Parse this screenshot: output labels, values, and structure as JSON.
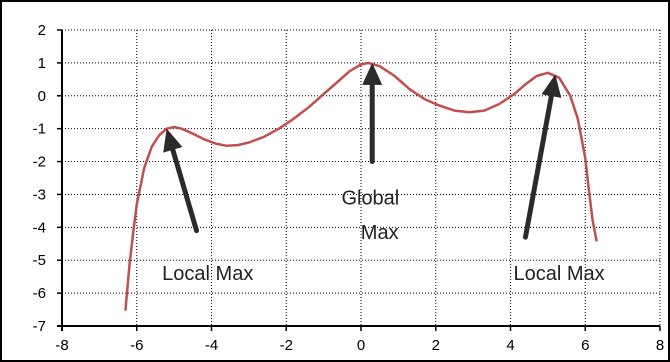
{
  "chart_data": {
    "type": "line",
    "title": "",
    "xlabel": "",
    "ylabel": "",
    "xlim": [
      -8,
      8
    ],
    "ylim": [
      -7,
      2
    ],
    "xticks": [
      -8,
      -6,
      -4,
      -2,
      0,
      2,
      4,
      6,
      8
    ],
    "yticks": [
      2,
      1,
      0,
      -1,
      -2,
      -3,
      -4,
      -5,
      -6,
      -7
    ],
    "grid": true,
    "legend": "none",
    "series": [
      {
        "color": "#c0504d",
        "points": [
          [
            -6.3,
            -6.5
          ],
          [
            -6.2,
            -5.2
          ],
          [
            -6.1,
            -4.2
          ],
          [
            -6.0,
            -3.3
          ],
          [
            -5.8,
            -2.2
          ],
          [
            -5.6,
            -1.55
          ],
          [
            -5.4,
            -1.2
          ],
          [
            -5.2,
            -1.0
          ],
          [
            -5.0,
            -0.95
          ],
          [
            -4.8,
            -1.0
          ],
          [
            -4.5,
            -1.15
          ],
          [
            -4.2,
            -1.32
          ],
          [
            -3.9,
            -1.45
          ],
          [
            -3.6,
            -1.52
          ],
          [
            -3.3,
            -1.5
          ],
          [
            -3.0,
            -1.42
          ],
          [
            -2.6,
            -1.25
          ],
          [
            -2.2,
            -1.0
          ],
          [
            -1.8,
            -0.7
          ],
          [
            -1.4,
            -0.35
          ],
          [
            -1.0,
            0.05
          ],
          [
            -0.6,
            0.45
          ],
          [
            -0.3,
            0.75
          ],
          [
            0.0,
            0.95
          ],
          [
            0.2,
            1.0
          ],
          [
            0.5,
            0.9
          ],
          [
            0.9,
            0.6
          ],
          [
            1.3,
            0.2
          ],
          [
            1.7,
            -0.1
          ],
          [
            2.1,
            -0.3
          ],
          [
            2.5,
            -0.45
          ],
          [
            2.9,
            -0.5
          ],
          [
            3.3,
            -0.45
          ],
          [
            3.7,
            -0.25
          ],
          [
            4.1,
            0.05
          ],
          [
            4.4,
            0.35
          ],
          [
            4.7,
            0.6
          ],
          [
            5.0,
            0.7
          ],
          [
            5.3,
            0.55
          ],
          [
            5.6,
            0.0
          ],
          [
            5.8,
            -0.7
          ],
          [
            6.0,
            -1.9
          ],
          [
            6.1,
            -2.9
          ],
          [
            6.2,
            -3.8
          ],
          [
            6.3,
            -4.4
          ]
        ]
      }
    ],
    "annotations": [
      {
        "text": "Local Max",
        "text_at": [
          -4.1,
          -5.6
        ],
        "arrow_from": [
          -4.4,
          -4.1
        ],
        "arrow_to": [
          -5.2,
          -1.0
        ]
      },
      {
        "text": "Global",
        "text_at": [
          0.25,
          -3.3
        ],
        "arrow_from": [
          0.3,
          -2.0
        ],
        "arrow_to": [
          0.3,
          1.0
        ]
      },
      {
        "text": "Max",
        "text_at": [
          0.5,
          -4.35
        ],
        "arrow_from": null,
        "arrow_to": null
      },
      {
        "text": "Local Max",
        "text_at": [
          5.3,
          -5.6
        ],
        "arrow_from": [
          4.4,
          -4.3
        ],
        "arrow_to": [
          5.2,
          0.65
        ]
      }
    ]
  }
}
